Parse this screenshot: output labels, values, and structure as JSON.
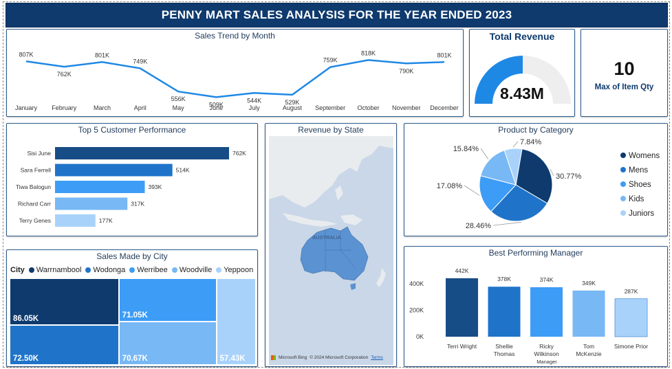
{
  "header": {
    "title": "PENNY MART SALES ANALYSIS FOR THE YEAR ENDED 2023"
  },
  "colors": {
    "navy": "#0e3a6e",
    "dark_blue": "#174d86",
    "mid_blue": "#1f74c9",
    "bright_blue": "#3d9cf5",
    "light_blue": "#78b8f4",
    "pale_blue": "#a9d2fb",
    "line_blue": "#1e88e5",
    "gauge_track": "#eeeeee"
  },
  "sales_trend": {
    "title": "Sales Trend by Month",
    "chart_data": {
      "type": "line",
      "categories": [
        "January",
        "February",
        "March",
        "April",
        "May",
        "June",
        "July",
        "August",
        "September",
        "October",
        "November",
        "December"
      ],
      "values": [
        807,
        762,
        801,
        749,
        556,
        509,
        544,
        529,
        759,
        818,
        790,
        801
      ],
      "labels": [
        "807K",
        "762K",
        "801K",
        "749K",
        "556K",
        "509K",
        "544K",
        "529K",
        "759K",
        "818K",
        "790K",
        "801K"
      ]
    }
  },
  "total_revenue": {
    "title": "Total Revenue",
    "value": "8.43M",
    "gauge_fraction": 0.5
  },
  "max_qty": {
    "value": "10",
    "label": "Max of Item Qty"
  },
  "top_customers": {
    "title": "Top 5 Customer Performance",
    "chart_data": {
      "type": "bar",
      "categories": [
        "Sisi June",
        "Sara Ferrell",
        "Tiwa Balogun",
        "Richard Carr",
        "Terry Genes"
      ],
      "values": [
        762,
        514,
        393,
        317,
        177
      ],
      "labels": [
        "762K",
        "514K",
        "393K",
        "317K",
        "177K"
      ]
    }
  },
  "revenue_by_state": {
    "title": "Revenue by State",
    "map_label": "AUSTRALIA",
    "attribution": "© 2024 Microsoft Corporation",
    "brand": "Microsoft Bing",
    "terms": "Terms"
  },
  "product_category": {
    "title": "Product by Category",
    "chart_data": {
      "type": "pie",
      "categories": [
        "Womens",
        "Mens",
        "Shoes",
        "Kids",
        "Juniors"
      ],
      "values": [
        30.77,
        28.46,
        17.08,
        15.84,
        7.84
      ],
      "labels": [
        "30.77%",
        "28.46%",
        "17.08%",
        "15.84%",
        "7.84%"
      ]
    }
  },
  "sales_by_city": {
    "title": "Sales Made by City",
    "legend_title": "City",
    "chart_data": {
      "type": "treemap",
      "categories": [
        "Warrnambool",
        "Wodonga",
        "Werribee",
        "Woodville",
        "Yeppoon"
      ],
      "values": [
        86.05,
        72.5,
        71.05,
        70.67,
        57.43
      ],
      "labels": [
        "86.05K",
        "72.50K",
        "71.05K",
        "70.67K",
        "57.43K"
      ]
    }
  },
  "best_manager": {
    "title": "Best Performing Manager",
    "chart_data": {
      "type": "bar",
      "categories": [
        "Terri Wright",
        "Shellie Thomas",
        "Ricky Wilkinson",
        "Tom McKenzie",
        "Simone Prior"
      ],
      "category_lines": [
        [
          "Terri Wright"
        ],
        [
          "Shellie",
          "Thomas"
        ],
        [
          "Ricky",
          "Wilkinson"
        ],
        [
          "Tom",
          "McKenzie"
        ],
        [
          "Simone Prior"
        ]
      ],
      "values": [
        442,
        378,
        374,
        349,
        287
      ],
      "labels": [
        "442K",
        "378K",
        "374K",
        "349K",
        "287K"
      ],
      "y_ticks": [
        0,
        200,
        400
      ],
      "y_tick_labels": [
        "0K",
        "200K",
        "400K"
      ],
      "xlabel": "Manager",
      "ylim": [
        0,
        480
      ]
    }
  }
}
